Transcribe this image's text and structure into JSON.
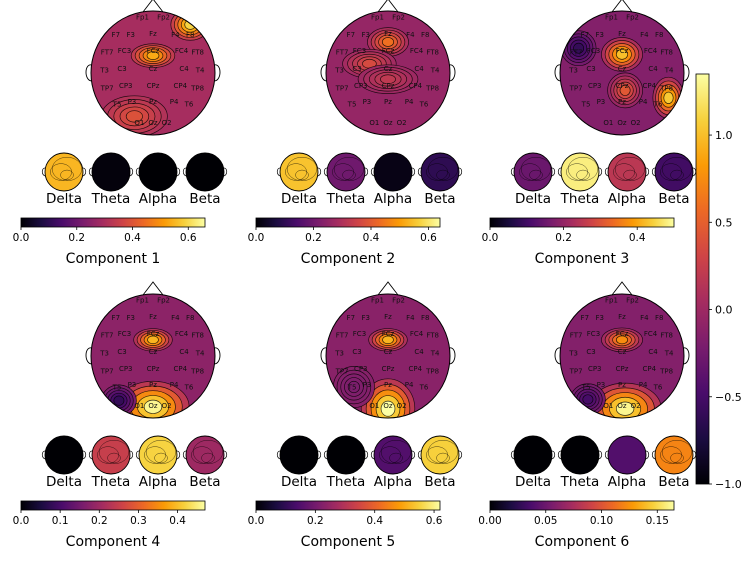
{
  "chart_data": {
    "type": "heatmap",
    "description_source": "EEG topographic maps for six components with per-band maps and colorbars",
    "electrodes": [
      "Fp1",
      "Fp2",
      "F7",
      "F3",
      "Fz",
      "F4",
      "F8",
      "FT7",
      "FC3",
      "FCz",
      "FC4",
      "FT8",
      "T3",
      "C3",
      "Cz",
      "C4",
      "T4",
      "TP7",
      "CP3",
      "CPz",
      "CP4",
      "TP8",
      "T5",
      "P3",
      "Pz",
      "P4",
      "T6",
      "O1",
      "Oz",
      "O2"
    ],
    "bands": [
      "Delta",
      "Theta",
      "Alpha",
      "Beta"
    ],
    "main_colorbar": {
      "ticks": [
        "1.0",
        "0.5",
        "0.0",
        "−0.5",
        "−1.0"
      ],
      "tick_values": [
        1.0,
        0.5,
        0.0,
        -0.5,
        -1.0
      ],
      "range": [
        -1.0,
        1.35
      ]
    },
    "components": [
      {
        "title": "Component 1",
        "band_weights": [
          0.55,
          0.01,
          0.0,
          0.0
        ],
        "colorbar": {
          "ticks": [
            "0.0",
            "0.2",
            "0.4",
            "0.6"
          ],
          "tick_values": [
            0.0,
            0.2,
            0.4,
            0.6
          ],
          "range": [
            0.0,
            0.66
          ]
        }
      },
      {
        "title": "Component 2",
        "band_weights": [
          0.55,
          0.2,
          0.02,
          0.1
        ],
        "colorbar": {
          "ticks": [
            "0.0",
            "0.2",
            "0.4",
            "0.6"
          ],
          "tick_values": [
            0.0,
            0.2,
            0.4,
            0.6
          ],
          "range": [
            0.0,
            0.64
          ]
        }
      },
      {
        "title": "Component 3",
        "band_weights": [
          0.15,
          0.48,
          0.25,
          0.1
        ],
        "colorbar": {
          "ticks": [
            "0.0",
            "0.2",
            "0.4"
          ],
          "tick_values": [
            0.0,
            0.2,
            0.4
          ],
          "range": [
            0.0,
            0.5
          ]
        }
      },
      {
        "title": "Component 4",
        "band_weights": [
          0.0,
          0.25,
          0.42,
          0.2
        ],
        "colorbar": {
          "ticks": [
            "0.0",
            "0.1",
            "0.2",
            "0.3",
            "0.4"
          ],
          "tick_values": [
            0.0,
            0.1,
            0.2,
            0.3,
            0.4
          ],
          "range": [
            0.0,
            0.47
          ]
        }
      },
      {
        "title": "Component 5",
        "band_weights": [
          0.0,
          0.0,
          0.15,
          0.55
        ],
        "colorbar": {
          "ticks": [
            "0.0",
            "0.2",
            "0.4",
            "0.6"
          ],
          "tick_values": [
            0.0,
            0.2,
            0.4,
            0.6
          ],
          "range": [
            0.0,
            0.62
          ]
        }
      },
      {
        "title": "Component 6",
        "band_weights": [
          0.0,
          0.0,
          0.04,
          0.12
        ],
        "colorbar": {
          "ticks": [
            "0.00",
            "0.05",
            "0.10",
            "0.15"
          ],
          "tick_values": [
            0.0,
            0.05,
            0.1,
            0.15
          ],
          "range": [
            0.0,
            0.165
          ]
        }
      }
    ],
    "colormap": "inferno"
  }
}
